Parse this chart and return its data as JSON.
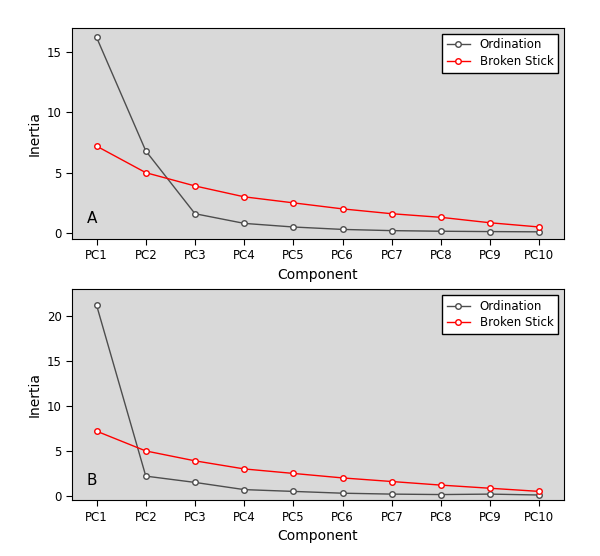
{
  "panel_A": {
    "label": "A",
    "ordination": [
      16.2,
      6.8,
      1.6,
      0.8,
      0.5,
      0.3,
      0.2,
      0.15,
      0.12,
      0.1
    ],
    "broken_stick": [
      7.2,
      5.0,
      3.9,
      3.0,
      2.5,
      2.0,
      1.6,
      1.3,
      0.85,
      0.5
    ],
    "ylim": [
      -0.5,
      17
    ],
    "yticks": [
      0,
      5,
      10,
      15
    ]
  },
  "panel_B": {
    "label": "B",
    "ordination": [
      21.2,
      2.2,
      1.5,
      0.7,
      0.5,
      0.3,
      0.2,
      0.15,
      0.2,
      0.1
    ],
    "broken_stick": [
      7.2,
      5.0,
      3.9,
      3.0,
      2.5,
      2.0,
      1.6,
      1.2,
      0.85,
      0.5
    ],
    "ylim": [
      -0.5,
      23
    ],
    "yticks": [
      0,
      5,
      10,
      15,
      20
    ]
  },
  "components": [
    "PC1",
    "PC2",
    "PC3",
    "PC4",
    "PC5",
    "PC6",
    "PC7",
    "PC8",
    "PC9",
    "PC10"
  ],
  "ordination_color": "#4d4d4d",
  "broken_stick_color": "#FF0000",
  "xlabel": "Component",
  "ylabel": "Inertia",
  "legend_ordination": "Ordination",
  "legend_broken_stick": "Broken Stick",
  "bg_color": "#ffffff",
  "plot_bg_color": "#d9d9d9",
  "font_family": "sans-serif"
}
